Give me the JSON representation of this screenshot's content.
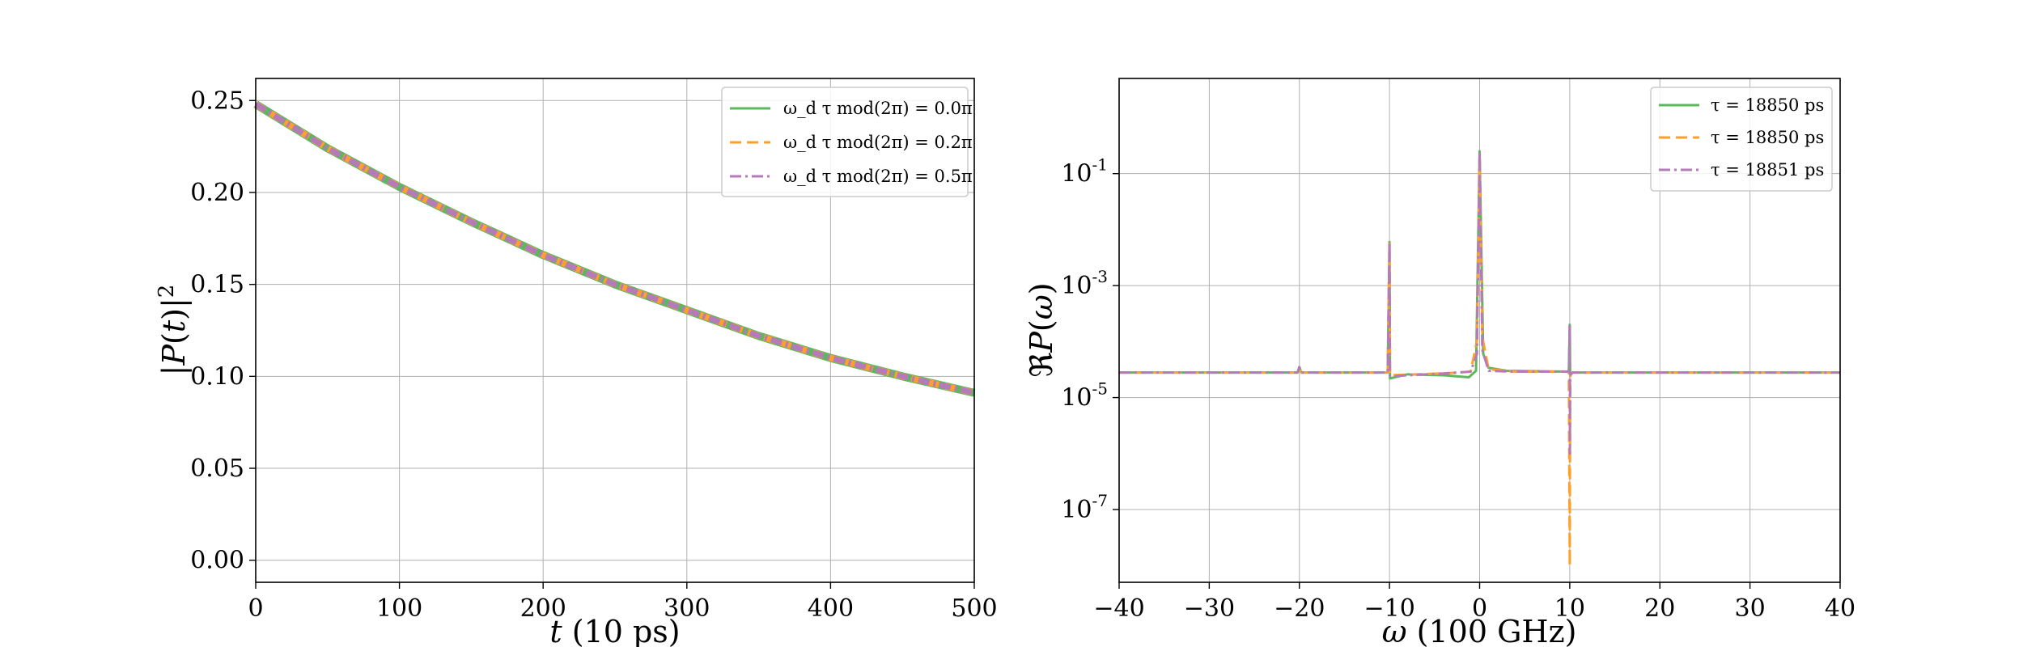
{
  "chart_data": [
    {
      "type": "line",
      "title": "",
      "xlabel": "t (10 ps)",
      "ylabel": "|P(t)|²",
      "xlim": [
        0,
        500
      ],
      "ylim": [
        -0.012,
        0.262
      ],
      "xticks": [
        "0",
        "100",
        "200",
        "300",
        "400",
        "500"
      ],
      "yticks": [
        "0.00",
        "0.05",
        "0.10",
        "0.15",
        "0.20",
        "0.25"
      ],
      "xtick_values": [
        0,
        100,
        200,
        300,
        400,
        500
      ],
      "ytick_values": [
        0.0,
        0.05,
        0.1,
        0.15,
        0.2,
        0.25
      ],
      "grid": true,
      "legend_position": "top-right",
      "colors": {
        "green": "#5cb85c",
        "orange": "#ff9f2e",
        "purple": "#b57ab8"
      },
      "x": [
        0,
        50,
        100,
        150,
        200,
        250,
        300,
        350,
        400,
        450,
        500
      ],
      "series": [
        {
          "name": "ω_d τ mod(2π) = 0.0π",
          "color": "#5cb85c",
          "style": "solid",
          "values": [
            0.248,
            0.224,
            0.203,
            0.184,
            0.166,
            0.15,
            0.136,
            0.122,
            0.11,
            0.1,
            0.091
          ]
        },
        {
          "name": "ω_d τ mod(2π) = 0.2π",
          "color": "#ff9f2e",
          "style": "dashed",
          "values": [
            0.248,
            0.224,
            0.203,
            0.184,
            0.166,
            0.15,
            0.136,
            0.122,
            0.11,
            0.1,
            0.091
          ]
        },
        {
          "name": "ω_d τ mod(2π) = 0.5π",
          "color": "#b57ab8",
          "style": "dashdot",
          "values": [
            0.248,
            0.224,
            0.203,
            0.184,
            0.166,
            0.15,
            0.136,
            0.122,
            0.11,
            0.1,
            0.091
          ]
        }
      ]
    },
    {
      "type": "line",
      "title": "",
      "xlabel": "ω (100 GHz)",
      "ylabel": "ℜP(ω)",
      "xlim": [
        -40,
        40
      ],
      "ylim_log10": [
        -8.3,
        0.7
      ],
      "yscale": "log",
      "xticks": [
        "−40",
        "−30",
        "−20",
        "−10",
        "0",
        "10",
        "20",
        "30",
        "40"
      ],
      "xtick_values": [
        -40,
        -30,
        -20,
        -10,
        0,
        10,
        20,
        30,
        40
      ],
      "yticks_base": [
        "10",
        "10",
        "10",
        "10"
      ],
      "yticks_exp": [
        "-1",
        "-3",
        "-5",
        "-7"
      ],
      "ytick_log_values": [
        -1,
        -3,
        -5,
        -7
      ],
      "grid": true,
      "legend_position": "top-right",
      "baseline": 2.8e-05,
      "series": [
        {
          "name": "τ = 18850 ps",
          "color": "#5cb85c",
          "style": "solid",
          "points": [
            [
              -40,
              2.8e-05
            ],
            [
              -20.2,
              2.8e-05
            ],
            [
              -20,
              3.5e-05
            ],
            [
              -19.8,
              2.8e-05
            ],
            [
              -10.2,
              2.8e-05
            ],
            [
              -10,
              0.006
            ],
            [
              -9.95,
              2.2e-05
            ],
            [
              -8,
              2.6e-05
            ],
            [
              -4,
              2.5e-05
            ],
            [
              -1.2,
              2.3e-05
            ],
            [
              -0.4,
              3e-05
            ],
            [
              0,
              0.25
            ],
            [
              0.4,
              6e-05
            ],
            [
              1,
              3.4e-05
            ],
            [
              3,
              3e-05
            ],
            [
              9.9,
              2.9e-05
            ],
            [
              10,
              0.0002
            ],
            [
              10.05,
              2.5e-05
            ],
            [
              10.3,
              2.8e-05
            ],
            [
              40,
              2.8e-05
            ]
          ]
        },
        {
          "name": "τ = 18850 ps",
          "color": "#ff9f2e",
          "style": "dashed",
          "points": [
            [
              -40,
              2.8e-05
            ],
            [
              -20.2,
              2.8e-05
            ],
            [
              -20,
              3.5e-05
            ],
            [
              -19.8,
              2.8e-05
            ],
            [
              -10.2,
              2.8e-05
            ],
            [
              -10,
              0.006
            ],
            [
              -9.95,
              2.5e-05
            ],
            [
              -4,
              2.7e-05
            ],
            [
              -1,
              2.9e-05
            ],
            [
              -0.3,
              0.0001
            ],
            [
              0,
              0.2
            ],
            [
              0.3,
              0.00012
            ],
            [
              1,
              3.2e-05
            ],
            [
              4,
              2.9e-05
            ],
            [
              9.9,
              2.9e-05
            ],
            [
              10,
              1e-08
            ],
            [
              10.05,
              2.5e-05
            ],
            [
              10.3,
              2.8e-05
            ],
            [
              40,
              2.8e-05
            ]
          ]
        },
        {
          "name": "τ = 18851 ps",
          "color": "#b57ab8",
          "style": "dashdot",
          "points": [
            [
              -40,
              2.8e-05
            ],
            [
              -20.2,
              2.8e-05
            ],
            [
              -20,
              3.5e-05
            ],
            [
              -19.8,
              2.8e-05
            ],
            [
              -10.2,
              2.8e-05
            ],
            [
              -10,
              0.006
            ],
            [
              -9.95,
              2.4e-05
            ],
            [
              -4,
              2.7e-05
            ],
            [
              -1,
              2.9e-05
            ],
            [
              -0.3,
              6e-05
            ],
            [
              0,
              0.25
            ],
            [
              0.3,
              7e-05
            ],
            [
              1,
              3e-05
            ],
            [
              4,
              2.9e-05
            ],
            [
              9.9,
              2.9e-05
            ],
            [
              10,
              0.0002
            ],
            [
              10.02,
              1e-06
            ],
            [
              10.05,
              2.5e-05
            ],
            [
              10.3,
              2.8e-05
            ],
            [
              40,
              2.8e-05
            ]
          ]
        }
      ]
    }
  ]
}
